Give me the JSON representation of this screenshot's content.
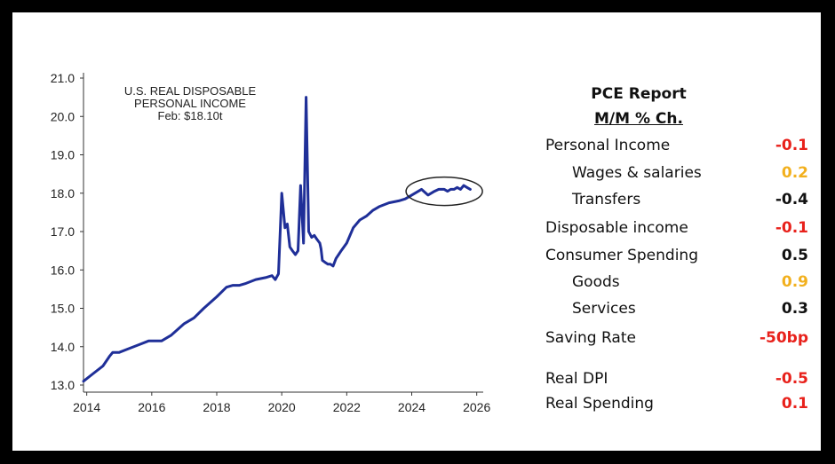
{
  "chart_data": {
    "type": "line",
    "annotation": [
      "U.S. REAL DISPOSABLE",
      "PERSONAL INCOME",
      "Feb: $18.10t"
    ],
    "x_ticks": [
      "2014",
      "2016",
      "2018",
      "2020",
      "2022",
      "2024",
      "2026"
    ],
    "y_ticks": [
      "13.0",
      "14.0",
      "15.0",
      "16.0",
      "17.0",
      "18.0",
      "19.0",
      "20.0",
      "21.0"
    ],
    "xlim": [
      2013.9,
      2026.2
    ],
    "ylim": [
      13.0,
      21.0
    ],
    "series": [
      {
        "color": "#1f2f98",
        "x": [
          2013.9,
          2014.2,
          2014.5,
          2014.7,
          2014.8,
          2015.0,
          2015.3,
          2015.6,
          2015.9,
          2016.0,
          2016.3,
          2016.6,
          2017.0,
          2017.3,
          2017.6,
          2018.0,
          2018.3,
          2018.5,
          2018.7,
          2018.9,
          2019.2,
          2019.5,
          2019.7,
          2019.8,
          2019.9,
          2020.0,
          2020.1,
          2020.17,
          2020.25,
          2020.33,
          2020.42,
          2020.5,
          2020.58,
          2020.67,
          2020.75,
          2020.83,
          2020.92,
          2021.0,
          2021.08,
          2021.17,
          2021.21,
          2021.25,
          2021.33,
          2021.42,
          2021.5,
          2021.58,
          2021.67,
          2021.75,
          2021.83,
          2022.0,
          2022.2,
          2022.4,
          2022.6,
          2022.8,
          2023.0,
          2023.3,
          2023.6,
          2023.8,
          2024.0,
          2024.3,
          2024.5,
          2024.7,
          2024.83,
          2024.9,
          2025.0,
          2025.1,
          2025.2,
          2025.3,
          2025.4,
          2025.5,
          2025.6,
          2025.7,
          2025.8
        ],
        "y": [
          13.1,
          13.3,
          13.5,
          13.75,
          13.85,
          13.85,
          13.95,
          14.05,
          14.15,
          14.15,
          14.15,
          14.3,
          14.6,
          14.75,
          15.0,
          15.3,
          15.55,
          15.6,
          15.6,
          15.65,
          15.75,
          15.8,
          15.85,
          15.75,
          15.9,
          18.0,
          17.1,
          17.2,
          16.6,
          16.5,
          16.4,
          16.5,
          18.2,
          16.7,
          20.5,
          17.0,
          16.85,
          16.9,
          16.8,
          16.7,
          16.55,
          16.25,
          16.2,
          16.15,
          16.15,
          16.1,
          16.3,
          16.4,
          16.5,
          16.7,
          17.1,
          17.3,
          17.4,
          17.55,
          17.65,
          17.75,
          17.8,
          17.85,
          17.95,
          18.1,
          17.95,
          18.05,
          18.1,
          18.1,
          18.1,
          18.05,
          18.1,
          18.1,
          18.15,
          18.1,
          18.2,
          18.15,
          18.1
        ]
      }
    ],
    "highlight": "ellipse around the most recent data (2024–2026)"
  },
  "report": {
    "title": "PCE Report",
    "subtitle": "M/M % Ch.",
    "rows": [
      {
        "label": "Personal Income",
        "value": "-0.1",
        "color": "#e8211b"
      },
      {
        "label": "Wages & salaries",
        "value": "0.2",
        "color": "#f2b01e"
      },
      {
        "label": "Transfers",
        "value": "-0.4",
        "color": "#111111"
      },
      {
        "label": "Disposable income",
        "value": "-0.1",
        "color": "#e8211b"
      },
      {
        "label": "Consumer Spending",
        "value": "0.5",
        "color": "#111111"
      },
      {
        "label": "Goods",
        "value": "0.9",
        "color": "#f2b01e"
      },
      {
        "label": "Services",
        "value": "0.3",
        "color": "#111111"
      },
      {
        "label": "Saving Rate",
        "value": "-50bp",
        "color": "#e8211b"
      },
      {
        "label": "Real DPI",
        "value": "-0.5",
        "color": "#e8211b"
      },
      {
        "label": "Real Spending",
        "value": "0.1",
        "color": "#e8211b"
      }
    ]
  }
}
